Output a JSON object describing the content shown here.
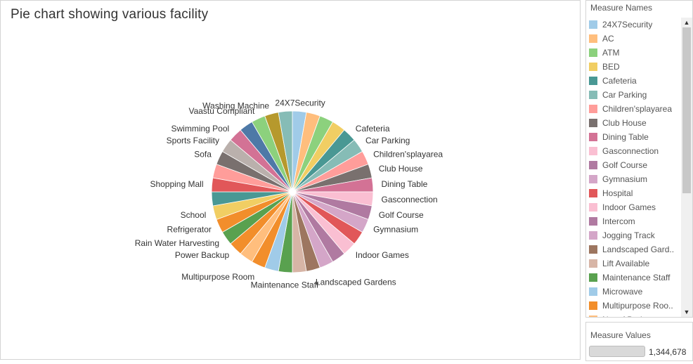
{
  "chart_title": "Pie chart showing various facility",
  "legend": {
    "title": "Measure Names",
    "items": [
      {
        "label": "24X7Security",
        "color": "#a0cbe8"
      },
      {
        "label": "AC",
        "color": "#ffbe7d"
      },
      {
        "label": "ATM",
        "color": "#8cd17d"
      },
      {
        "label": "BED",
        "color": "#f1ce63"
      },
      {
        "label": "Cafeteria",
        "color": "#499894"
      },
      {
        "label": "Car Parking",
        "color": "#86bcb6"
      },
      {
        "label": "Children'splayarea",
        "color": "#ff9d9a"
      },
      {
        "label": "Club House",
        "color": "#79706e"
      },
      {
        "label": "Dining Table",
        "color": "#d37295"
      },
      {
        "label": "Gasconnection",
        "color": "#fabfd2"
      },
      {
        "label": "Golf Course",
        "color": "#b07aa1"
      },
      {
        "label": "Gymnasium",
        "color": "#d4a6c8"
      },
      {
        "label": "Hospital",
        "color": "#e15759"
      },
      {
        "label": "Indoor Games",
        "color": "#fabfd2"
      },
      {
        "label": "Intercom",
        "color": "#b07aa1"
      },
      {
        "label": "Jogging Track",
        "color": "#d4a6c8"
      },
      {
        "label": "Landscaped Gard..",
        "color": "#9d7660"
      },
      {
        "label": "Lift Available",
        "color": "#d7b5a6"
      },
      {
        "label": "Maintenance Staff",
        "color": "#59a14f"
      },
      {
        "label": "Microwave",
        "color": "#a0cbe8"
      },
      {
        "label": "Multipurpose Roo..",
        "color": "#f28e2b"
      },
      {
        "label": "No. of Bedrooms",
        "color": "#ffbe7d"
      }
    ]
  },
  "measure_values": {
    "title": "Measure Values",
    "max_label": "1,344,678"
  },
  "chart_data": {
    "type": "pie",
    "title": "Pie chart showing various facility",
    "slices": [
      {
        "label": "24X7Security",
        "value": 1,
        "color": "#a0cbe8"
      },
      {
        "label": "",
        "value": 1,
        "color": "#ffbe7d"
      },
      {
        "label": "",
        "value": 1,
        "color": "#8cd17d"
      },
      {
        "label": "",
        "value": 1,
        "color": "#f1ce63"
      },
      {
        "label": "Cafeteria",
        "value": 1,
        "color": "#499894"
      },
      {
        "label": "Car Parking",
        "value": 1,
        "color": "#86bcb6"
      },
      {
        "label": "Children'splayarea",
        "value": 1,
        "color": "#ff9d9a"
      },
      {
        "label": "Club House",
        "value": 1,
        "color": "#79706e"
      },
      {
        "label": "Dining Table",
        "value": 1,
        "color": "#d37295"
      },
      {
        "label": "Gasconnection",
        "value": 1,
        "color": "#fabfd2"
      },
      {
        "label": "Golf Course",
        "value": 1,
        "color": "#b07aa1"
      },
      {
        "label": "Gymnasium",
        "value": 1,
        "color": "#d4a6c8"
      },
      {
        "label": "",
        "value": 1,
        "color": "#e15759"
      },
      {
        "label": "Indoor Games",
        "value": 1,
        "color": "#fabfd2"
      },
      {
        "label": "",
        "value": 1,
        "color": "#b07aa1"
      },
      {
        "label": "",
        "value": 1,
        "color": "#d4a6c8"
      },
      {
        "label": "Landscaped Gardens",
        "value": 1,
        "color": "#9d7660"
      },
      {
        "label": "",
        "value": 1,
        "color": "#d7b5a6"
      },
      {
        "label": "Maintenance Staff",
        "value": 1,
        "color": "#59a14f"
      },
      {
        "label": "",
        "value": 1,
        "color": "#a0cbe8"
      },
      {
        "label": "Multipurpose Room",
        "value": 1,
        "color": "#f28e2b"
      },
      {
        "label": "",
        "value": 1,
        "color": "#ffbe7d"
      },
      {
        "label": "Power Backup",
        "value": 1,
        "color": "#f28e2b"
      },
      {
        "label": "Rain Water Harvesting",
        "value": 1,
        "color": "#59a14f"
      },
      {
        "label": "Refrigerator",
        "value": 1,
        "color": "#f28e2b"
      },
      {
        "label": "School",
        "value": 1,
        "color": "#f1ce63"
      },
      {
        "label": "",
        "value": 1,
        "color": "#499894"
      },
      {
        "label": "Shopping Mall",
        "value": 1,
        "color": "#e15759"
      },
      {
        "label": "",
        "value": 1,
        "color": "#ff9d9a"
      },
      {
        "label": "Sofa",
        "value": 1,
        "color": "#79706e"
      },
      {
        "label": "Sports Facility",
        "value": 1,
        "color": "#bab0ac"
      },
      {
        "label": "Swimming Pool",
        "value": 1,
        "color": "#d37295"
      },
      {
        "label": "",
        "value": 1,
        "color": "#4e79a7"
      },
      {
        "label": "Vaastu Compliant",
        "value": 1,
        "color": "#8cd17d"
      },
      {
        "label": "Washing Machine",
        "value": 1,
        "color": "#b6992d"
      },
      {
        "label": "",
        "value": 1,
        "color": "#86bcb6"
      }
    ]
  }
}
